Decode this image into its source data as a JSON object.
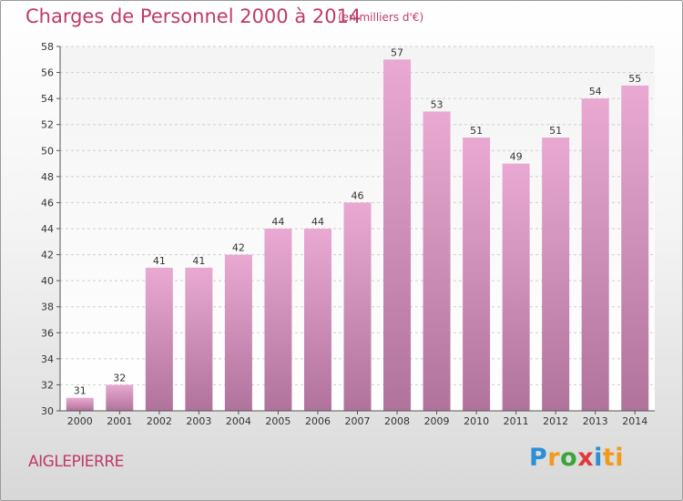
{
  "title": "Charges de Personnel 2000 à 2014",
  "subtitle": "(en milliers d'€)",
  "commune": "AIGLEPIERRE",
  "logo": {
    "text": "Proxiti",
    "letters": [
      "P",
      "r",
      "o",
      "x",
      "i",
      "ti"
    ]
  },
  "colors": {
    "accent": "#c0396b",
    "bar_top": "#e9a9d2",
    "bar_bottom": "#b0739b"
  },
  "chart_data": {
    "type": "bar",
    "title": "Charges de Personnel 2000 à 2014",
    "subtitle": "(en milliers d'€)",
    "xlabel": "",
    "ylabel": "",
    "categories": [
      "2000",
      "2001",
      "2002",
      "2003",
      "2004",
      "2005",
      "2006",
      "2007",
      "2008",
      "2009",
      "2010",
      "2011",
      "2012",
      "2013",
      "2014"
    ],
    "values": [
      31,
      32,
      41,
      41,
      42,
      44,
      44,
      46,
      57,
      53,
      51,
      49,
      51,
      54,
      55
    ],
    "ylim": [
      30,
      58
    ],
    "yticks": [
      30,
      32,
      34,
      36,
      38,
      40,
      42,
      44,
      46,
      48,
      50,
      52,
      54,
      56,
      58
    ],
    "grid": true,
    "legend": "none"
  }
}
